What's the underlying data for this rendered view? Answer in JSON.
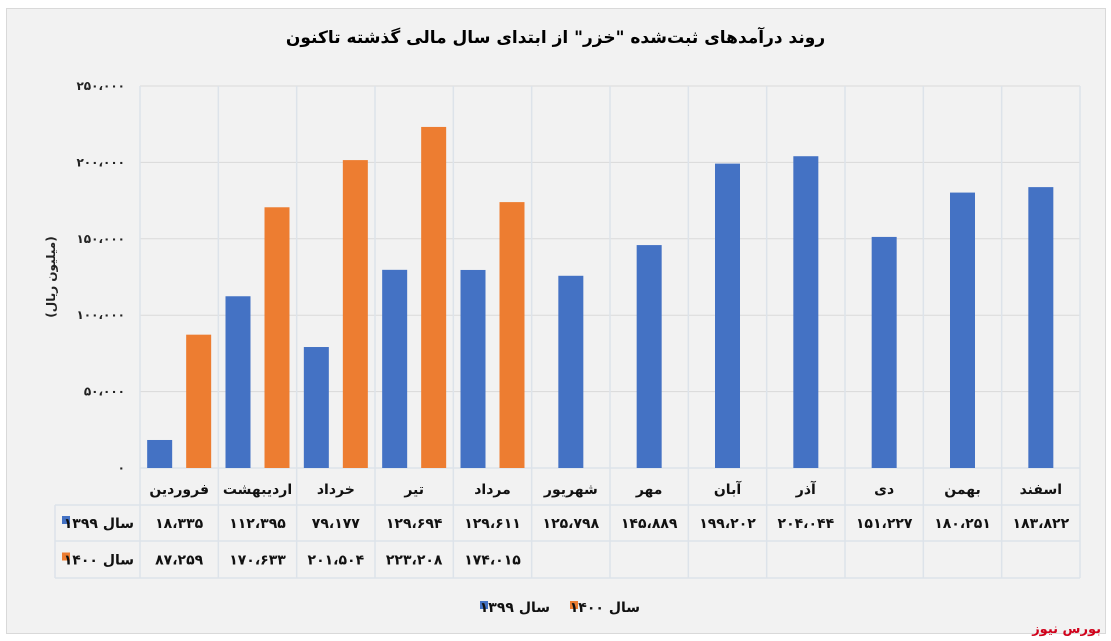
{
  "chart_data": {
    "type": "bar",
    "title": "روند درآمدهای ثبت‌شده \"خزر\" از ابتدای سال مالی گذشته تاکنون",
    "ylabel": "(میلیون ریال)",
    "xlabel": "",
    "ylim": [
      0,
      250000
    ],
    "yticks": [
      0,
      50000,
      100000,
      150000,
      200000,
      250000
    ],
    "ytick_labels": [
      "۰",
      "۵۰،۰۰۰",
      "۱۰۰،۰۰۰",
      "۱۵۰،۰۰۰",
      "۲۰۰،۰۰۰",
      "۲۵۰،۰۰۰"
    ],
    "grid": true,
    "legend_position": "bottom",
    "categories": [
      "فروردین",
      "اردیبهشت",
      "خرداد",
      "تیر",
      "مرداد",
      "شهریور",
      "مهر",
      "آبان",
      "آذر",
      "دی",
      "بهمن",
      "اسفند"
    ],
    "series": [
      {
        "name": "سال ۱۳۹۹",
        "color": "#4472c4",
        "values": [
          18335,
          112395,
          79177,
          129694,
          129611,
          125798,
          145889,
          199202,
          204044,
          151227,
          180251,
          183822
        ],
        "labels": [
          "۱۸،۳۳۵",
          "۱۱۲،۳۹۵",
          "۷۹،۱۷۷",
          "۱۲۹،۶۹۴",
          "۱۲۹،۶۱۱",
          "۱۲۵،۷۹۸",
          "۱۴۵،۸۸۹",
          "۱۹۹،۲۰۲",
          "۲۰۴،۰۴۴",
          "۱۵۱،۲۲۷",
          "۱۸۰،۲۵۱",
          "۱۸۳،۸۲۲"
        ]
      },
      {
        "name": "سال ۱۴۰۰",
        "color": "#ed7d31",
        "values": [
          87259,
          170633,
          201504,
          223208,
          174015,
          null,
          null,
          null,
          null,
          null,
          null,
          null
        ],
        "labels": [
          "۸۷،۲۵۹",
          "۱۷۰،۶۳۳",
          "۲۰۱،۵۰۴",
          "۲۲۳،۲۰۸",
          "۱۷۴،۰۱۵",
          "",
          "",
          "",
          "",
          "",
          "",
          ""
        ]
      }
    ]
  },
  "source": "بورس نیوز"
}
